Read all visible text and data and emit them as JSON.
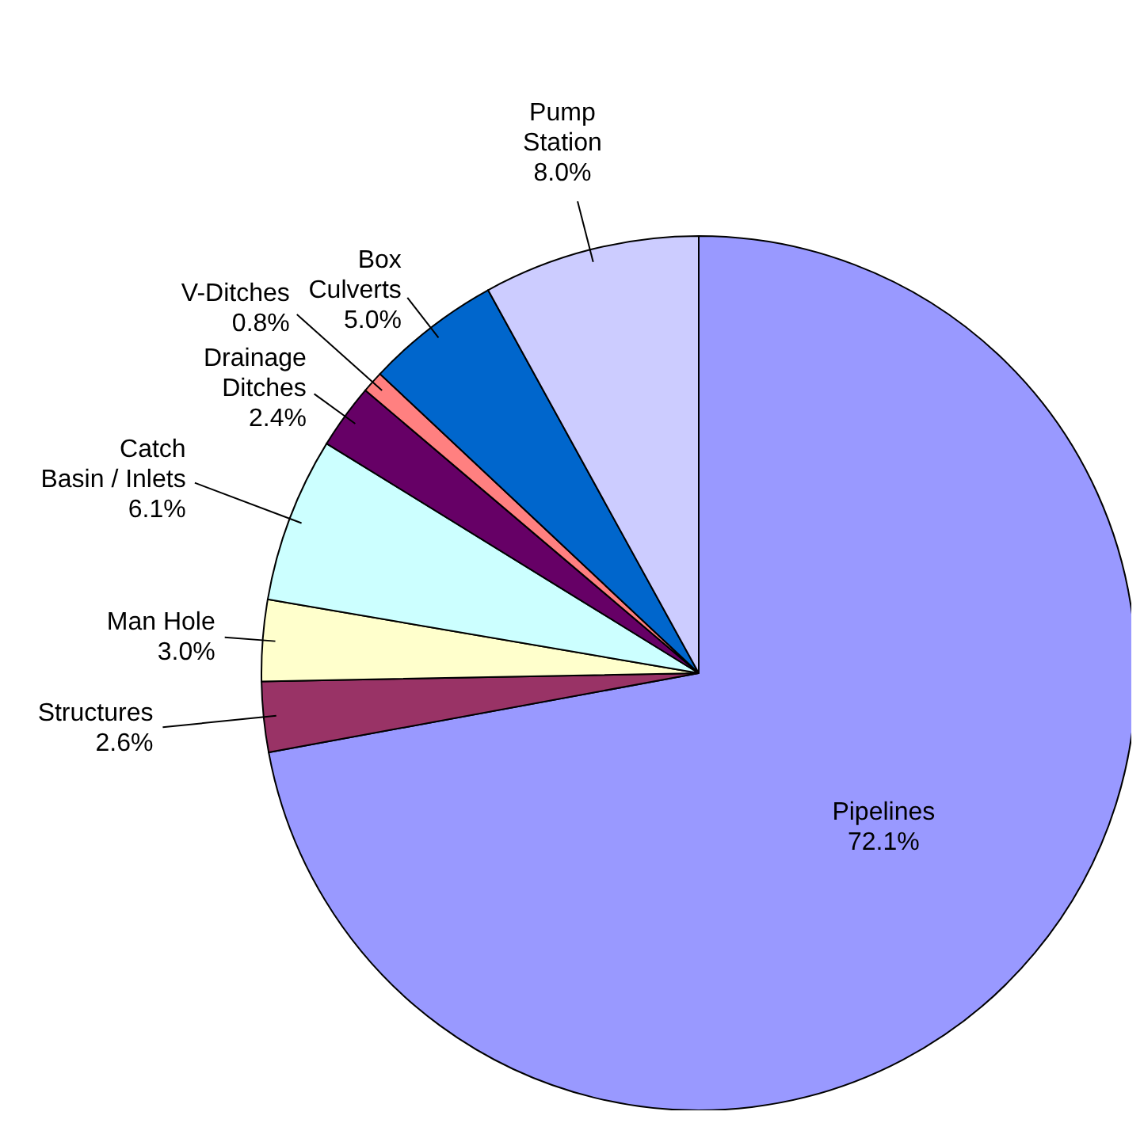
{
  "chart_data": {
    "type": "pie",
    "categories": [
      "Pipelines",
      "Structures",
      "Man Hole",
      "Catch\nBasin / Inlets",
      "Drainage\nDitches",
      "V-Ditches",
      "Box\nCulverts",
      "Pump\nStation"
    ],
    "values": [
      72.1,
      2.6,
      3.0,
      6.1,
      2.4,
      0.8,
      5.0,
      8.0
    ],
    "colors": [
      "#9999ff",
      "#993366",
      "#ffffcc",
      "#ccffff",
      "#660066",
      "#ff8080",
      "#0066cc",
      "#ccccff"
    ],
    "value_labels": [
      "72.1%",
      "2.6%",
      "3.0%",
      "6.1%",
      "2.4%",
      "0.8%",
      "5.0%",
      "8.0%"
    ]
  }
}
